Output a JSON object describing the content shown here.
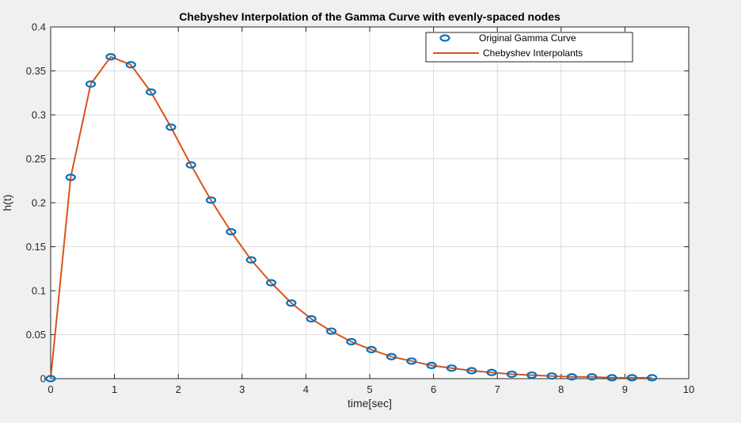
{
  "chart_data": {
    "type": "line",
    "title": "Chebyshev Interpolation of the Gamma Curve with evenly-spaced nodes",
    "xlabel": "time[sec]",
    "ylabel": "h(t)",
    "xlim": [
      0,
      10
    ],
    "ylim": [
      0,
      0.4
    ],
    "xticks": [
      0,
      1,
      2,
      3,
      4,
      5,
      6,
      7,
      8,
      9,
      10
    ],
    "yticks": [
      0,
      0.05,
      0.1,
      0.15,
      0.2,
      0.25,
      0.3,
      0.35,
      0.4
    ],
    "xtick_labels": [
      "0",
      "1",
      "2",
      "3",
      "4",
      "5",
      "6",
      "7",
      "8",
      "9",
      "10"
    ],
    "ytick_labels": [
      "0",
      "0.05",
      "0.1",
      "0.15",
      "0.2",
      "0.25",
      "0.3",
      "0.35",
      "0.4"
    ],
    "grid": true,
    "legend_position": "top-right",
    "series": [
      {
        "name": "Original Gamma Curve",
        "style": "markers",
        "marker": "circle-open",
        "color": "#0072BD",
        "x": [
          0,
          0.314,
          0.628,
          0.942,
          1.257,
          1.571,
          1.885,
          2.199,
          2.513,
          2.827,
          3.142,
          3.456,
          3.77,
          4.084,
          4.398,
          4.712,
          5.027,
          5.341,
          5.655,
          5.969,
          6.283,
          6.597,
          6.912,
          7.226,
          7.54,
          7.854,
          8.168,
          8.482,
          8.796,
          9.111,
          9.425
        ],
        "y": [
          0,
          0.229,
          0.335,
          0.366,
          0.357,
          0.326,
          0.286,
          0.243,
          0.203,
          0.167,
          0.135,
          0.109,
          0.086,
          0.068,
          0.054,
          0.042,
          0.033,
          0.025,
          0.02,
          0.015,
          0.012,
          0.009,
          0.007,
          0.005,
          0.004,
          0.003,
          0.002,
          0.002,
          0.001,
          0.001,
          0.001
        ]
      },
      {
        "name": "Chebyshev Interpolants",
        "style": "line",
        "color": "#D95319",
        "x": [
          0,
          0.314,
          0.628,
          0.942,
          1.257,
          1.571,
          1.885,
          2.199,
          2.513,
          2.827,
          3.142,
          3.456,
          3.77,
          4.084,
          4.398,
          4.712,
          5.027,
          5.341,
          5.655,
          5.969,
          6.283,
          6.597,
          6.912,
          7.226,
          7.54,
          7.854,
          8.168,
          8.482,
          8.796,
          9.111,
          9.425
        ],
        "y": [
          0,
          0.229,
          0.335,
          0.366,
          0.357,
          0.326,
          0.286,
          0.243,
          0.203,
          0.167,
          0.135,
          0.109,
          0.086,
          0.068,
          0.054,
          0.042,
          0.033,
          0.025,
          0.02,
          0.015,
          0.012,
          0.009,
          0.007,
          0.005,
          0.004,
          0.003,
          0.002,
          0.002,
          0.001,
          0.001,
          0.001
        ]
      }
    ]
  }
}
